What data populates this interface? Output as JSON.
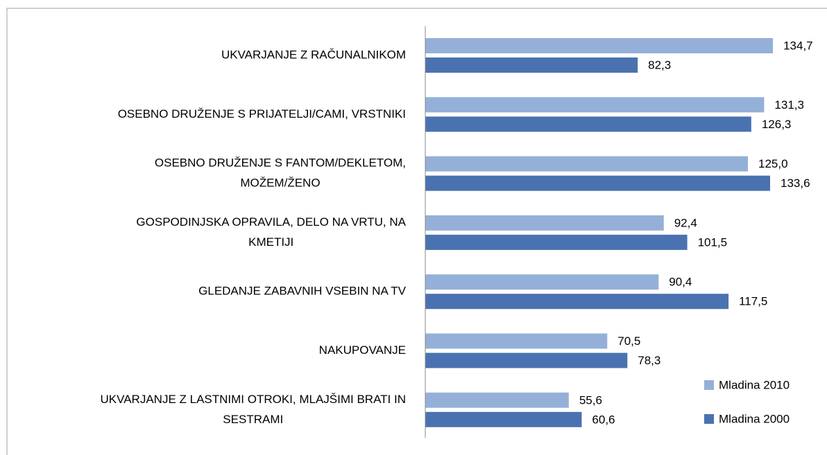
{
  "chart_data": {
    "type": "bar",
    "orientation": "horizontal",
    "categories": [
      [
        "UKVARJANJE Z RAČUNALNIKOM"
      ],
      [
        "OSEBNO DRUŽENJE S PRIJATELJI/CAMI, VRSTNIKI"
      ],
      [
        "OSEBNO DRUŽENJE S FANTOM/DEKLETOM,",
        "MOŽEM/ŽENO"
      ],
      [
        "GOSPODINJSKA OPRAVILA, DELO NA VRTU, NA",
        "KMETIJI"
      ],
      [
        "GLEDANJE ZABAVNIH VSEBIN NA TV"
      ],
      [
        "NAKUPOVANJE"
      ],
      [
        "UKVARJANJE Z LASTNIMI OTROKI, MLAJŠIMI BRATI IN",
        "SESTRAMI"
      ]
    ],
    "series": [
      {
        "name": "Mladina 2010",
        "color": "#95b0d8",
        "values": [
          134.7,
          131.3,
          125.0,
          92.4,
          90.4,
          70.5,
          55.6
        ],
        "value_labels": [
          "134,7",
          "131,3",
          "125,0",
          "92,4",
          "90,4",
          "70,5",
          "55,6"
        ]
      },
      {
        "name": "Mladina 2000",
        "color": "#4a72b0",
        "values": [
          82.3,
          126.3,
          133.6,
          101.5,
          117.5,
          78.3,
          60.6
        ],
        "value_labels": [
          "82,3",
          "126,3",
          "133,6",
          "101,5",
          "117,5",
          "78,3",
          "60,6"
        ]
      }
    ],
    "xlim": [
      0,
      150
    ],
    "legend": "bottom-right"
  }
}
